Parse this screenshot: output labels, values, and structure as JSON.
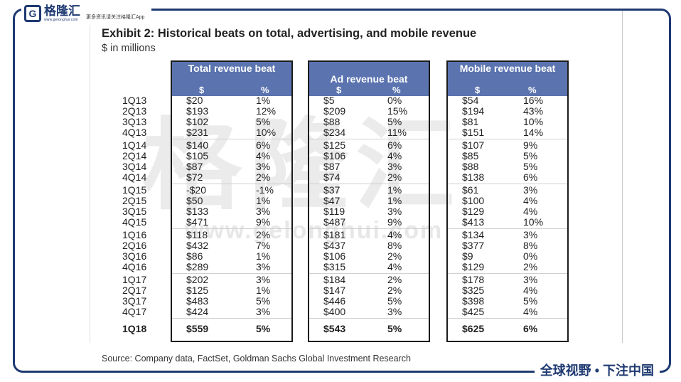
{
  "brand": {
    "name": "格隆汇",
    "url": "www.gelonghui.com",
    "slogan": "更多资讯请关注格隆汇App",
    "footer_slogan": "全球视野 • 下注中国"
  },
  "watermark": {
    "big": "格隆汇",
    "url": "www.gelonghui.com"
  },
  "exhibit": {
    "title": "Exhibit 2: Historical beats on total, advertising, and mobile revenue",
    "subtitle": "$ in millions",
    "source": "Source: Company data, FactSet, Goldman Sachs Global Investment Research"
  },
  "columns": [
    {
      "title": "Total revenue beat",
      "unit_dollar": "$",
      "unit_pct": "%"
    },
    {
      "title": "Ad revenue beat",
      "unit_dollar": "$",
      "unit_pct": "%"
    },
    {
      "title": "Mobile revenue beat",
      "unit_dollar": "$",
      "unit_pct": "%"
    }
  ],
  "rows": [
    {
      "q": "1Q13",
      "v": [
        "$20",
        "1%",
        "$5",
        "0%",
        "$54",
        "16%"
      ]
    },
    {
      "q": "2Q13",
      "v": [
        "$193",
        "12%",
        "$209",
        "15%",
        "$194",
        "43%"
      ]
    },
    {
      "q": "3Q13",
      "v": [
        "$102",
        "5%",
        "$88",
        "5%",
        "$81",
        "10%"
      ]
    },
    {
      "q": "4Q13",
      "v": [
        "$231",
        "10%",
        "$234",
        "11%",
        "$151",
        "14%"
      ]
    },
    {
      "q": "1Q14",
      "v": [
        "$140",
        "6%",
        "$125",
        "6%",
        "$107",
        "9%"
      ]
    },
    {
      "q": "2Q14",
      "v": [
        "$105",
        "4%",
        "$106",
        "4%",
        "$85",
        "5%"
      ]
    },
    {
      "q": "3Q14",
      "v": [
        "$87",
        "3%",
        "$87",
        "3%",
        "$88",
        "5%"
      ]
    },
    {
      "q": "4Q14",
      "v": [
        "$72",
        "2%",
        "$74",
        "2%",
        "$138",
        "6%"
      ]
    },
    {
      "q": "1Q15",
      "v": [
        "-$20",
        "-1%",
        "$37",
        "1%",
        "$61",
        "3%"
      ]
    },
    {
      "q": "2Q15",
      "v": [
        "$50",
        "1%",
        "$47",
        "1%",
        "$100",
        "4%"
      ]
    },
    {
      "q": "3Q15",
      "v": [
        "$133",
        "3%",
        "$119",
        "3%",
        "$129",
        "4%"
      ]
    },
    {
      "q": "4Q15",
      "v": [
        "$471",
        "9%",
        "$487",
        "9%",
        "$413",
        "10%"
      ]
    },
    {
      "q": "1Q16",
      "v": [
        "$118",
        "2%",
        "$181",
        "4%",
        "$134",
        "3%"
      ]
    },
    {
      "q": "2Q16",
      "v": [
        "$432",
        "7%",
        "$437",
        "8%",
        "$377",
        "8%"
      ]
    },
    {
      "q": "3Q16",
      "v": [
        "$86",
        "1%",
        "$106",
        "2%",
        "$9",
        "0%"
      ]
    },
    {
      "q": "4Q16",
      "v": [
        "$289",
        "3%",
        "$315",
        "4%",
        "$129",
        "2%"
      ]
    },
    {
      "q": "1Q17",
      "v": [
        "$202",
        "3%",
        "$184",
        "2%",
        "$178",
        "3%"
      ]
    },
    {
      "q": "2Q17",
      "v": [
        "$125",
        "1%",
        "$147",
        "2%",
        "$325",
        "4%"
      ]
    },
    {
      "q": "3Q17",
      "v": [
        "$483",
        "5%",
        "$446",
        "5%",
        "$398",
        "5%"
      ]
    },
    {
      "q": "4Q17",
      "v": [
        "$424",
        "3%",
        "$400",
        "3%",
        "$425",
        "4%"
      ]
    },
    {
      "q": "1Q18",
      "v": [
        "$559",
        "5%",
        "$543",
        "5%",
        "$625",
        "6%"
      ]
    }
  ]
}
